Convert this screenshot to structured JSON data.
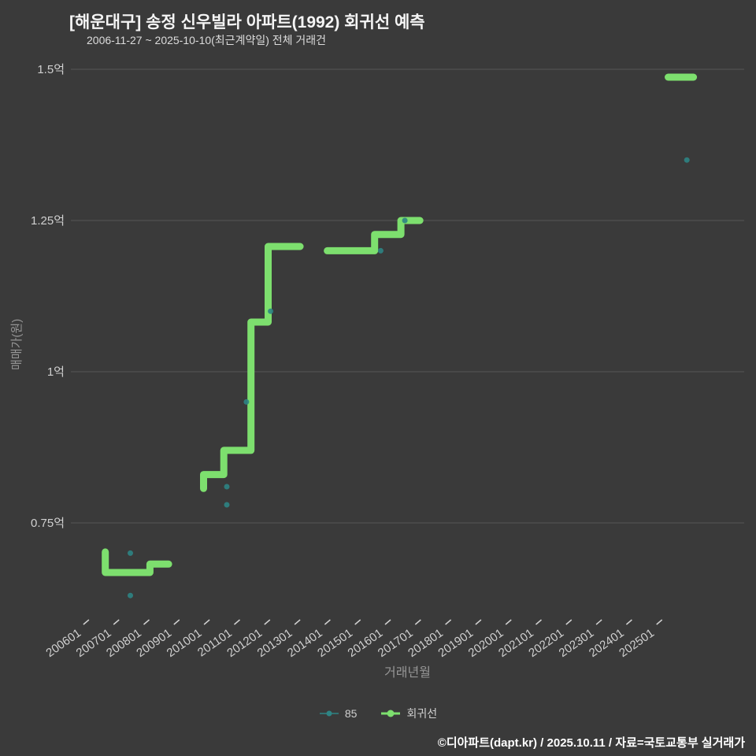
{
  "header": {
    "title": "[해운대구] 송정 신우빌라 아파트(1992) 회귀선 예측",
    "subtitle": "2006-11-27 ~ 2025-10-10(최근계약일) 전체 거래건"
  },
  "footer": {
    "credit": "©디아파트(dapt.kr) / 2025.10.11 / 자료=국토교통부 실거래가"
  },
  "colors": {
    "background": "#3a3a3a",
    "grid": "#565656",
    "tick_text": "#d0d0d0",
    "axis_title": "#969696",
    "scatter": "#2e8484",
    "regression": "#7ddf6e",
    "title": "#f5f5f5",
    "footer": "#ffffff"
  },
  "legend": [
    {
      "label": "85",
      "color": "#2e8484",
      "icon": "scatter-marker-icon",
      "line_width": 1.5,
      "marker_radius": 3.5
    },
    {
      "label": "회귀선",
      "color": "#7ddf6e",
      "icon": "line-marker-icon",
      "line_width": 3,
      "marker_radius": 4.5
    }
  ],
  "chart_data": {
    "type": "scatter",
    "title": "[해운대구] 송정 신우빌라 아파트(1992) 회귀선 예측",
    "subtitle": "2006-11-27 ~ 2025-10-10(최근계약일) 전체 거래건",
    "xlabel": "거래년월",
    "ylabel": "매매가(원)",
    "unit": "억원",
    "grid": "horizontal-only",
    "legend_position": "bottom-center",
    "xlim": [
      2005.48,
      2027.8
    ],
    "ylim": [
      0.586,
      1.5
    ],
    "y_ticks": [
      {
        "label": "1.5억",
        "value": 1.5
      },
      {
        "label": "1.25억",
        "value": 1.25
      },
      {
        "label": "1억",
        "value": 1.0
      },
      {
        "label": "0.75억",
        "value": 0.75
      }
    ],
    "x_ticks": [
      {
        "label": "200601",
        "value": 2006.0
      },
      {
        "label": "200701",
        "value": 2007.0
      },
      {
        "label": "200801",
        "value": 2008.0
      },
      {
        "label": "200901",
        "value": 2009.0
      },
      {
        "label": "201001",
        "value": 2010.0
      },
      {
        "label": "201101",
        "value": 2011.0
      },
      {
        "label": "201201",
        "value": 2012.0
      },
      {
        "label": "201301",
        "value": 2013.0
      },
      {
        "label": "201401",
        "value": 2014.0
      },
      {
        "label": "201501",
        "value": 2015.0
      },
      {
        "label": "201601",
        "value": 2016.0
      },
      {
        "label": "201701",
        "value": 2017.0
      },
      {
        "label": "201801",
        "value": 2018.0
      },
      {
        "label": "201901",
        "value": 2019.0
      },
      {
        "label": "202001",
        "value": 2020.0
      },
      {
        "label": "202101",
        "value": 2021.0
      },
      {
        "label": "202201",
        "value": 2022.0
      },
      {
        "label": "202301",
        "value": 2023.0
      },
      {
        "label": "202401",
        "value": 2024.0
      },
      {
        "label": "202501",
        "value": 2025.0
      }
    ],
    "series": [
      {
        "name": "85",
        "type": "scatter",
        "color": "#2e8484",
        "points": [
          [
            2007.45,
            0.7
          ],
          [
            2007.45,
            0.63
          ],
          [
            2010.65,
            0.81
          ],
          [
            2010.65,
            0.78
          ],
          [
            2011.3,
            0.95
          ],
          [
            2012.1,
            1.1
          ],
          [
            2015.75,
            1.2
          ],
          [
            2016.55,
            1.25
          ],
          [
            2025.9,
            1.35
          ]
        ]
      },
      {
        "name": "회귀선",
        "type": "line",
        "color": "#7ddf6e",
        "width": 9,
        "segments": [
          [
            [
              2006.62,
              0.702
            ],
            [
              2006.62,
              0.668
            ],
            [
              2008.1,
              0.668
            ],
            [
              2008.1,
              0.682
            ],
            [
              2008.72,
              0.682
            ]
          ],
          [
            [
              2009.88,
              0.807
            ],
            [
              2009.88,
              0.83
            ],
            [
              2010.55,
              0.83
            ],
            [
              2010.55,
              0.87
            ],
            [
              2011.45,
              0.87
            ],
            [
              2011.45,
              1.082
            ],
            [
              2012.02,
              1.082
            ],
            [
              2012.02,
              1.207
            ],
            [
              2013.08,
              1.207
            ]
          ],
          [
            [
              2013.98,
              1.2
            ],
            [
              2015.55,
              1.2
            ],
            [
              2015.55,
              1.227
            ],
            [
              2016.42,
              1.227
            ],
            [
              2016.42,
              1.25
            ],
            [
              2017.05,
              1.25
            ]
          ],
          [
            [
              2025.28,
              1.487
            ],
            [
              2026.12,
              1.487
            ]
          ]
        ]
      }
    ]
  }
}
